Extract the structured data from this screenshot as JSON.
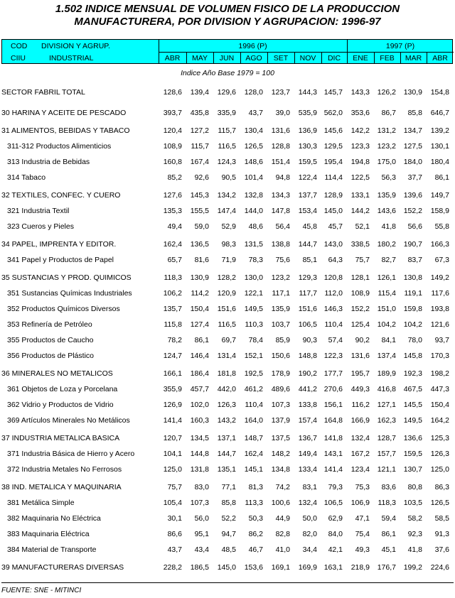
{
  "title": {
    "line1": "1.502 INDICE MENSUAL DE VOLUMEN FISICO DE LA PRODUCCION",
    "line2": "MANUFACTURERA, POR DIVISION Y AGRUPACION: 1996-97"
  },
  "header": {
    "cod": "COD",
    "ciiu": "CIIU",
    "division": "DIVISION Y AGRUP.",
    "industrial": "INDUSTRIAL",
    "year1": "1996 (P)",
    "year2": "1997 (P)",
    "months": [
      "ABR",
      "MAY",
      "JUN",
      "AGO",
      "SET",
      "NOV",
      "DIC",
      "ENE",
      "FEB",
      "MAR",
      "ABR"
    ],
    "color": "#00ffff"
  },
  "subtitle": "Indice Año Base 1979 = 100",
  "rows": [
    {
      "type": "total",
      "label": " SECTOR FABRIL TOTAL",
      "values": [
        "128,6",
        "139,4",
        "129,6",
        "128,0",
        "123,7",
        "144,3",
        "145,7",
        "143,3",
        "126,2",
        "130,9",
        "154,8"
      ]
    },
    {
      "type": "grp",
      "label": "30 HARINA Y ACEITE DE PESCADO",
      "values": [
        "393,7",
        "435,8",
        "335,9",
        "43,7",
        "39,0",
        "535,9",
        "562,0",
        "353,6",
        "86,7",
        "85,8",
        "646,7"
      ]
    },
    {
      "type": "grp",
      "label": "31 ALIMENTOS, BEBIDAS Y TABACO",
      "values": [
        "120,4",
        "127,2",
        "115,7",
        "130,4",
        "131,6",
        "136,9",
        "145,6",
        "142,2",
        "131,2",
        "134,7",
        "139,2"
      ]
    },
    {
      "type": "sub",
      "label": "311-312 Productos Alimenticios",
      "values": [
        "108,9",
        "115,7",
        "116,5",
        "126,5",
        "128,8",
        "130,3",
        "129,5",
        "123,3",
        "123,2",
        "127,5",
        "130,1"
      ]
    },
    {
      "type": "sub",
      "label": "313 Industria de Bebidas",
      "values": [
        "160,8",
        "167,4",
        "124,3",
        "148,6",
        "151,4",
        "159,5",
        "195,4",
        "194,8",
        "175,0",
        "184,0",
        "180,4"
      ]
    },
    {
      "type": "sub",
      "label": "314 Tabaco",
      "values": [
        "85,2",
        "92,6",
        "90,5",
        "101,4",
        "94,8",
        "122,4",
        "114,4",
        "122,5",
        "56,3",
        "37,7",
        "86,1"
      ]
    },
    {
      "type": "grp",
      "label": "32 TEXTILES, CONFEC. Y CUERO",
      "values": [
        "127,6",
        "145,3",
        "134,2",
        "132,8",
        "134,3",
        "137,7",
        "128,9",
        "133,1",
        "135,9",
        "139,6",
        "149,7"
      ]
    },
    {
      "type": "sub",
      "label": "321 Industria Textil",
      "values": [
        "135,3",
        "155,5",
        "147,4",
        "144,0",
        "147,8",
        "153,4",
        "145,0",
        "144,2",
        "143,6",
        "152,2",
        "158,9"
      ]
    },
    {
      "type": "sub",
      "label": "323 Cueros y Pieles",
      "values": [
        "49,4",
        "59,0",
        "52,9",
        "48,6",
        "56,4",
        "45,8",
        "45,7",
        "52,1",
        "41,8",
        "56,6",
        "55,8"
      ]
    },
    {
      "type": "grp",
      "label": "34 PAPEL, IMPRENTA Y EDITOR.",
      "values": [
        "162,4",
        "136,5",
        "98,3",
        "131,5",
        "138,8",
        "144,7",
        "143,0",
        "338,5",
        "180,2",
        "190,7",
        "166,3"
      ]
    },
    {
      "type": "sub",
      "label": "341 Papel y Productos de Papel",
      "values": [
        "65,7",
        "81,6",
        "71,9",
        "78,3",
        "75,6",
        "85,1",
        "64,3",
        "75,7",
        "82,7",
        "83,7",
        "67,3"
      ]
    },
    {
      "type": "grp",
      "label": "35 SUSTANCIAS Y PROD. QUIMICOS",
      "values": [
        "118,3",
        "130,9",
        "128,2",
        "130,0",
        "123,2",
        "129,3",
        "120,8",
        "128,1",
        "126,1",
        "130,8",
        "149,2"
      ]
    },
    {
      "type": "sub",
      "label": "351 Sustancias Químicas Industriales",
      "values": [
        "106,2",
        "114,2",
        "120,9",
        "122,1",
        "117,1",
        "117,7",
        "112,0",
        "108,9",
        "115,4",
        "119,1",
        "117,6"
      ]
    },
    {
      "type": "sub",
      "label": "352 Productos Químicos Diversos",
      "values": [
        "135,7",
        "150,4",
        "151,6",
        "149,5",
        "135,9",
        "151,6",
        "146,3",
        "152,2",
        "151,0",
        "159,8",
        "193,8"
      ]
    },
    {
      "type": "sub",
      "label": "353 Refinería de Petróleo",
      "values": [
        "115,8",
        "127,4",
        "116,5",
        "110,3",
        "103,7",
        "106,5",
        "110,4",
        "125,4",
        "104,2",
        "104,2",
        "121,6"
      ]
    },
    {
      "type": "sub",
      "label": "355 Productos de Caucho",
      "values": [
        "78,2",
        "86,1",
        "69,7",
        "78,4",
        "85,9",
        "90,3",
        "57,4",
        "90,2",
        "84,1",
        "78,0",
        "93,7"
      ]
    },
    {
      "type": "sub",
      "label": "356 Productos de Plástico",
      "values": [
        "124,7",
        "146,4",
        "131,4",
        "152,1",
        "150,6",
        "148,8",
        "122,3",
        "131,6",
        "137,4",
        "145,8",
        "170,3"
      ]
    },
    {
      "type": "grp",
      "label": "36 MINERALES NO METALICOS",
      "values": [
        "166,1",
        "186,4",
        "181,8",
        "192,5",
        "178,9",
        "190,2",
        "177,7",
        "195,7",
        "189,9",
        "192,3",
        "198,2"
      ]
    },
    {
      "type": "sub",
      "label": "361 Objetos de Loza y Porcelana",
      "values": [
        "355,9",
        "457,7",
        "442,0",
        "461,2",
        "489,6",
        "441,2",
        "270,6",
        "449,3",
        "416,8",
        "467,5",
        "447,3"
      ]
    },
    {
      "type": "sub",
      "label": "362 Vidrio y Productos de Vidrio",
      "values": [
        "126,9",
        "102,0",
        "126,3",
        "110,4",
        "107,3",
        "133,8",
        "156,1",
        "116,2",
        "127,1",
        "145,5",
        "150,4"
      ]
    },
    {
      "type": "sub",
      "label": "369 Artículos Minerales No Metálicos",
      "values": [
        "141,4",
        "160,3",
        "143,2",
        "164,0",
        "137,9",
        "157,4",
        "164,8",
        "166,9",
        "162,3",
        "149,5",
        "164,2"
      ]
    },
    {
      "type": "grp",
      "label": "37 INDUSTRIA METALICA BASICA",
      "values": [
        "120,7",
        "134,5",
        "137,1",
        "148,7",
        "137,5",
        "136,7",
        "141,8",
        "132,4",
        "128,7",
        "136,6",
        "125,3"
      ]
    },
    {
      "type": "sub",
      "label": "371 Industria Básica de Hierro y Acero",
      "values": [
        "104,1",
        "144,8",
        "144,7",
        "162,4",
        "148,2",
        "149,4",
        "143,1",
        "167,2",
        "157,7",
        "159,5",
        "126,3"
      ]
    },
    {
      "type": "sub",
      "label": "372 Industria Metales No Ferrosos",
      "values": [
        "125,0",
        "131,8",
        "135,1",
        "145,1",
        "134,8",
        "133,4",
        "141,4",
        "123,4",
        "121,1",
        "130,7",
        "125,0"
      ]
    },
    {
      "type": "grp",
      "label": "38 IND. METALICA Y MAQUINARIA",
      "values": [
        "75,7",
        "83,0",
        "77,1",
        "81,3",
        "74,2",
        "83,1",
        "79,3",
        "75,3",
        "83,6",
        "80,8",
        "86,3"
      ]
    },
    {
      "type": "sub",
      "label": "381 Metálica Simple",
      "values": [
        "105,4",
        "107,3",
        "85,8",
        "113,3",
        "100,6",
        "132,4",
        "106,5",
        "106,9",
        "118,3",
        "103,5",
        "126,5"
      ]
    },
    {
      "type": "sub",
      "label": "382 Maquinaria No Eléctrica",
      "values": [
        "30,1",
        "56,0",
        "52,2",
        "50,3",
        "44,9",
        "50,0",
        "62,9",
        "47,1",
        "59,4",
        "58,2",
        "58,5"
      ]
    },
    {
      "type": "sub",
      "label": "383 Maquinaria Eléctrica",
      "values": [
        "86,6",
        "95,1",
        "94,7",
        "86,2",
        "82,8",
        "82,0",
        "84,0",
        "75,4",
        "86,1",
        "92,3",
        "91,3"
      ]
    },
    {
      "type": "sub",
      "label": "384 Material de Transporte",
      "values": [
        "43,7",
        "43,4",
        "48,5",
        "46,7",
        "41,0",
        "34,4",
        "42,1",
        "49,3",
        "45,1",
        "41,8",
        "37,6"
      ]
    },
    {
      "type": "grp",
      "label": "39 MANUFACTURERAS DIVERSAS",
      "values": [
        "228,2",
        "186,5",
        "145,0",
        "153,6",
        "169,1",
        "169,9",
        "163,1",
        "218,9",
        "176,7",
        "199,2",
        "224,6"
      ]
    }
  ],
  "source": "FUENTE: SNE - MITINCI"
}
